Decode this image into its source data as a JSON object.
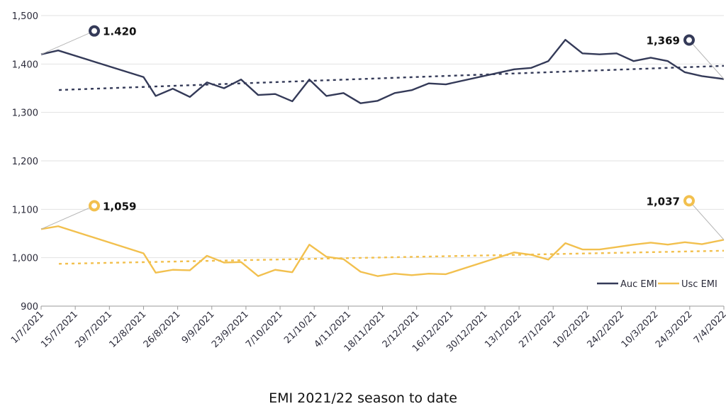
{
  "chart_data": {
    "type": "line",
    "title": "EMI 2021/22 season to date",
    "xlabel": "",
    "ylabel": "",
    "ylim": [
      900,
      1500
    ],
    "yticks": [
      "900",
      "1,000",
      "1,100",
      "1,200",
      "1,300",
      "1,400",
      "1,500"
    ],
    "xticks": [
      "1/7/2021",
      "15/7/2021",
      "29/7/2021",
      "12/8/2021",
      "26/8/2021",
      "9/9/2021",
      "23/9/2021",
      "7/10/2021",
      "21/10/21",
      "4/11/2021",
      "18/11/2021",
      "2/12/2021",
      "16/12/2021",
      "30/12/2021",
      "13/1/2022",
      "27/1/2022",
      "10/2/2022",
      "24/2/2022",
      "10/3/2022",
      "24/3/2022",
      "7/4/2022"
    ],
    "x_start": "2021-07-01",
    "x_end": "2022-04-07",
    "grid": "horizontal",
    "legend_position": "bottom-right",
    "series": [
      {
        "name": "Auc EMI",
        "color": "#343a58",
        "trendline": true,
        "x": [
          "2021-07-01",
          "2021-07-08",
          "2021-08-12",
          "2021-08-17",
          "2021-08-24",
          "2021-08-31",
          "2021-09-07",
          "2021-09-14",
          "2021-09-21",
          "2021-09-28",
          "2021-10-05",
          "2021-10-12",
          "2021-10-19",
          "2021-10-26",
          "2021-11-02",
          "2021-11-09",
          "2021-11-16",
          "2021-11-23",
          "2021-11-30",
          "2021-12-07",
          "2021-12-14",
          "2022-01-11",
          "2022-01-18",
          "2022-01-25",
          "2022-02-01",
          "2022-02-08",
          "2022-02-15",
          "2022-02-22",
          "2022-03-01",
          "2022-03-08",
          "2022-03-15",
          "2022-03-22",
          "2022-03-29",
          "2022-04-07"
        ],
        "values": [
          1420,
          1428,
          1373,
          1334,
          1349,
          1332,
          1362,
          1350,
          1368,
          1336,
          1338,
          1323,
          1368,
          1334,
          1340,
          1319,
          1324,
          1340,
          1346,
          1360,
          1358,
          1389,
          1392,
          1406,
          1450,
          1422,
          1420,
          1422,
          1406,
          1413,
          1406,
          1383,
          1375,
          1369
        ]
      },
      {
        "name": "Usc EMI",
        "color": "#f2c04e",
        "trendline": true,
        "x": [
          "2021-07-01",
          "2021-07-08",
          "2021-08-12",
          "2021-08-17",
          "2021-08-24",
          "2021-08-31",
          "2021-09-07",
          "2021-09-14",
          "2021-09-21",
          "2021-09-28",
          "2021-10-05",
          "2021-10-12",
          "2021-10-19",
          "2021-10-26",
          "2021-11-02",
          "2021-11-09",
          "2021-11-16",
          "2021-11-23",
          "2021-11-30",
          "2021-12-07",
          "2021-12-14",
          "2022-01-11",
          "2022-01-18",
          "2022-01-25",
          "2022-02-01",
          "2022-02-08",
          "2022-02-15",
          "2022-02-22",
          "2022-03-01",
          "2022-03-08",
          "2022-03-15",
          "2022-03-22",
          "2022-03-29",
          "2022-04-07"
        ],
        "values": [
          1059,
          1065,
          1009,
          969,
          975,
          974,
          1004,
          990,
          991,
          962,
          975,
          970,
          1027,
          1002,
          997,
          971,
          962,
          967,
          964,
          967,
          966,
          1011,
          1006,
          996,
          1030,
          1017,
          1017,
          1022,
          1027,
          1031,
          1027,
          1032,
          1028,
          1037
        ]
      }
    ],
    "annotations": [
      {
        "series": 0,
        "point": "first",
        "text": "1.420"
      },
      {
        "series": 0,
        "point": "last",
        "text": "1,369"
      },
      {
        "series": 1,
        "point": "first",
        "text": "1,059"
      },
      {
        "series": 1,
        "point": "last",
        "text": "1,037"
      }
    ]
  }
}
